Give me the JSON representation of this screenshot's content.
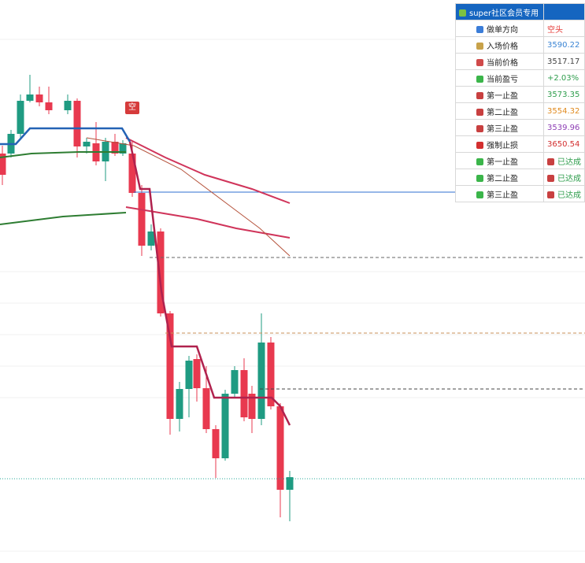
{
  "marker": "空",
  "panel": {
    "title": "super社区会员专用",
    "rows": [
      {
        "label": "做单方向",
        "value": "空头"
      },
      {
        "label": "入场价格",
        "value": "3590.22"
      },
      {
        "label": "当前价格",
        "value": "3517.17"
      },
      {
        "label": "当前盈亏",
        "value": "+2.03%"
      },
      {
        "label": "第一止盈",
        "value": "3573.35"
      },
      {
        "label": "第二止盈",
        "value": "3554.32"
      },
      {
        "label": "第三止盈",
        "value": "3539.96"
      },
      {
        "label": "强制止损",
        "value": "3650.54"
      },
      {
        "label": "第一止盈",
        "value": "已达成"
      },
      {
        "label": "第二止盈",
        "value": "已达成"
      },
      {
        "label": "第三止盈",
        "value": "已达成"
      }
    ]
  }
}
